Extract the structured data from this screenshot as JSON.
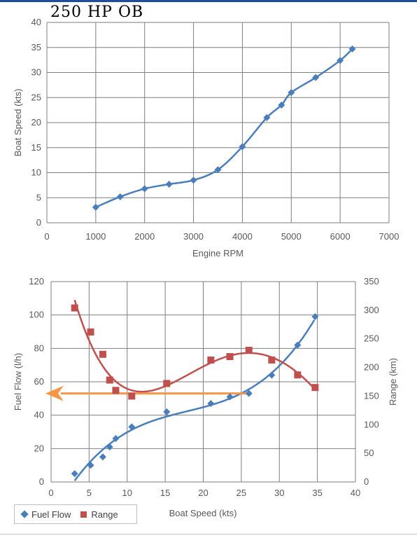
{
  "heading": "250 HP OB",
  "chart_data": [
    {
      "type": "line",
      "title": "",
      "xlabel": "Engine RPM",
      "ylabel": "Boat Speed (kts)",
      "xlim": [
        0,
        7000
      ],
      "ylim": [
        0,
        40
      ],
      "xticks": [
        "0",
        "1000",
        "2000",
        "3000",
        "4000",
        "5000",
        "6000",
        "7000"
      ],
      "yticks": [
        "0",
        "5",
        "10",
        "15",
        "20",
        "25",
        "30",
        "35",
        "40"
      ],
      "grid": true,
      "series": [
        {
          "color": "#4a7ebb",
          "marker": "diamond",
          "x": [
            1000,
            1500,
            2000,
            2500,
            3000,
            3500,
            4000,
            4500,
            4800,
            5000,
            5500,
            6000,
            6250
          ],
          "y": [
            3.1,
            5.2,
            6.8,
            7.7,
            8.5,
            10.6,
            15.2,
            21.0,
            23.5,
            26.0,
            29.0,
            32.4,
            34.7
          ]
        }
      ]
    },
    {
      "type": "scatter",
      "title": "",
      "xlabel": "Boat Speed (kts)",
      "ylabel": "Fuel Flow (l/h)",
      "y2label": "Range (km)",
      "xlim": [
        0,
        40
      ],
      "ylim": [
        0,
        120
      ],
      "y2lim": [
        0,
        350
      ],
      "xticks": [
        "0",
        "5",
        "10",
        "15",
        "20",
        "25",
        "30",
        "35",
        "40"
      ],
      "yticks": [
        "0",
        "20",
        "40",
        "60",
        "80",
        "100",
        "120"
      ],
      "y2ticks": [
        "0",
        "50",
        "100",
        "150",
        "200",
        "250",
        "300",
        "350"
      ],
      "grid": true,
      "legend_position": "bottom-left",
      "series": [
        {
          "name": "Fuel Flow",
          "axis": "left",
          "color": "#4a7ebb",
          "marker": "diamond",
          "x": [
            3.1,
            5.2,
            6.8,
            7.7,
            8.5,
            10.6,
            15.2,
            21.0,
            23.5,
            26.0,
            29.0,
            32.4,
            34.7
          ],
          "y": [
            5,
            10,
            15,
            21,
            26,
            33,
            42,
            47,
            51,
            53,
            64,
            82,
            99
          ]
        },
        {
          "name": "Range",
          "axis": "right",
          "color": "#c0504d",
          "marker": "square",
          "x": [
            3.1,
            5.2,
            6.8,
            7.7,
            8.5,
            10.6,
            15.2,
            21.0,
            23.5,
            26.0,
            29.0,
            32.4,
            34.7
          ],
          "y": [
            304,
            262,
            223,
            178,
            160,
            150,
            172,
            213,
            219,
            230,
            213,
            187,
            165
          ]
        }
      ],
      "annotations": [
        {
          "type": "arrow",
          "color": "#f79646",
          "from_x": 26.0,
          "to_x": 0,
          "at_y": 53
        }
      ]
    }
  ]
}
